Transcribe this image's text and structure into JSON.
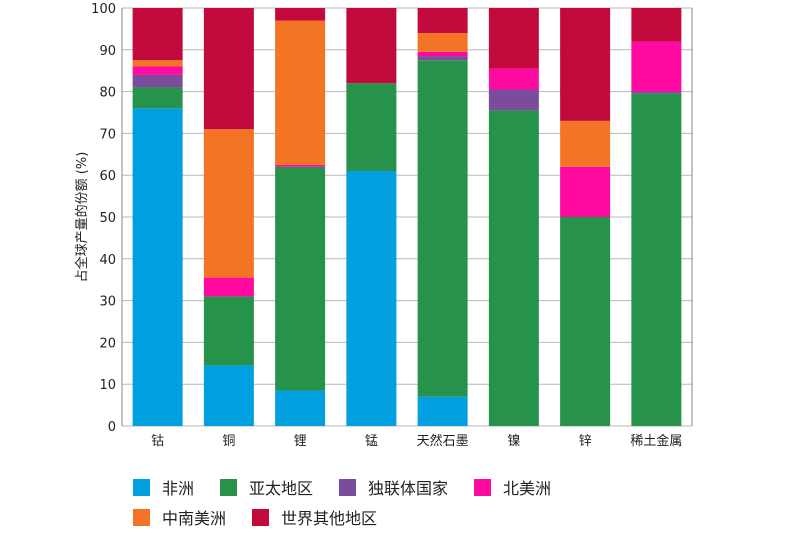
{
  "chart_data": {
    "type": "bar",
    "stacked": true,
    "title": "",
    "xlabel": "",
    "ylabel": "占全球产量的份额 (%)",
    "ylim": [
      0,
      100
    ],
    "yticks": [
      0,
      10,
      20,
      30,
      40,
      50,
      60,
      70,
      80,
      90,
      100
    ],
    "grid": true,
    "legend_position": "bottom",
    "categories": [
      "钴",
      "铜",
      "锂",
      "锰",
      "天然石墨",
      "镍",
      "锌",
      "稀土金属"
    ],
    "series": [
      {
        "name": "非洲",
        "color": "#00a0e0",
        "values": [
          76,
          14.5,
          8.5,
          61,
          7,
          0,
          0,
          0
        ]
      },
      {
        "name": "亚太地区",
        "color": "#27924a",
        "values": [
          5,
          16.5,
          53.5,
          21,
          80.5,
          75.5,
          50,
          79.5
        ]
      },
      {
        "name": "独联体国家",
        "color": "#7c4c9c",
        "values": [
          3,
          0,
          0,
          0,
          1,
          5,
          0,
          0.5
        ]
      },
      {
        "name": "北美洲",
        "color": "#ff0aa0",
        "values": [
          2,
          4.5,
          0.5,
          0,
          1,
          5,
          12,
          12
        ]
      },
      {
        "name": "中南美洲",
        "color": "#f37424",
        "values": [
          1.5,
          35.5,
          34.5,
          0,
          4.5,
          0,
          11,
          0
        ]
      },
      {
        "name": "世界其他地区",
        "color": "#c20a3c",
        "values": [
          12.5,
          29,
          3,
          18,
          6,
          14.5,
          27,
          8
        ]
      }
    ]
  },
  "legend": {
    "rows": [
      [
        {
          "label": "非洲",
          "color": "#00a0e0"
        },
        {
          "label": "亚太地区",
          "color": "#27924a"
        },
        {
          "label": "独联体国家",
          "color": "#7c4c9c"
        },
        {
          "label": "北美洲",
          "color": "#ff0aa0"
        }
      ],
      [
        {
          "label": "中南美洲",
          "color": "#f37424"
        },
        {
          "label": "世界其他地区",
          "color": "#c20a3c"
        }
      ]
    ]
  }
}
